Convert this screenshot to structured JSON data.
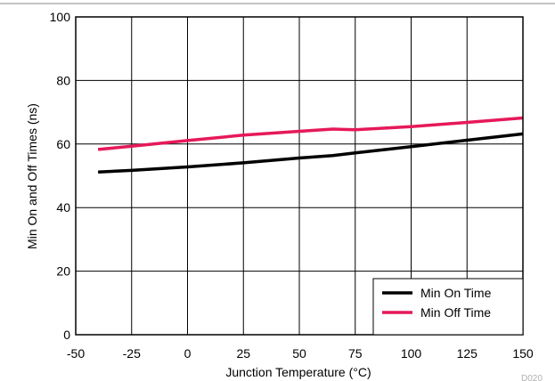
{
  "chart_data": {
    "type": "line",
    "title": "",
    "xlabel": "Junction Temperature (°C)",
    "ylabel": "Min On and Off Times (ns)",
    "xlim": [
      -50,
      150
    ],
    "ylim": [
      0,
      100
    ],
    "xticks": [
      -50,
      -25,
      0,
      25,
      50,
      75,
      100,
      125,
      150
    ],
    "yticks": [
      0,
      20,
      40,
      60,
      80,
      100
    ],
    "grid": true,
    "legend_position": "bottom-right",
    "figure_code": "D020",
    "series": [
      {
        "name": "Min On Time",
        "color": "#000000",
        "x": [
          -40,
          -25,
          0,
          25,
          50,
          65,
          75,
          100,
          125,
          150
        ],
        "y": [
          51.2,
          51.7,
          52.8,
          54.1,
          55.6,
          56.4,
          57.2,
          59.2,
          61.2,
          63.2
        ]
      },
      {
        "name": "Min Off Time",
        "color": "#e6195a",
        "x": [
          -40,
          -25,
          0,
          25,
          50,
          65,
          75,
          100,
          125,
          150
        ],
        "y": [
          58.3,
          59.3,
          61.1,
          62.8,
          64.0,
          64.7,
          64.5,
          65.5,
          66.8,
          68.2
        ]
      }
    ]
  }
}
